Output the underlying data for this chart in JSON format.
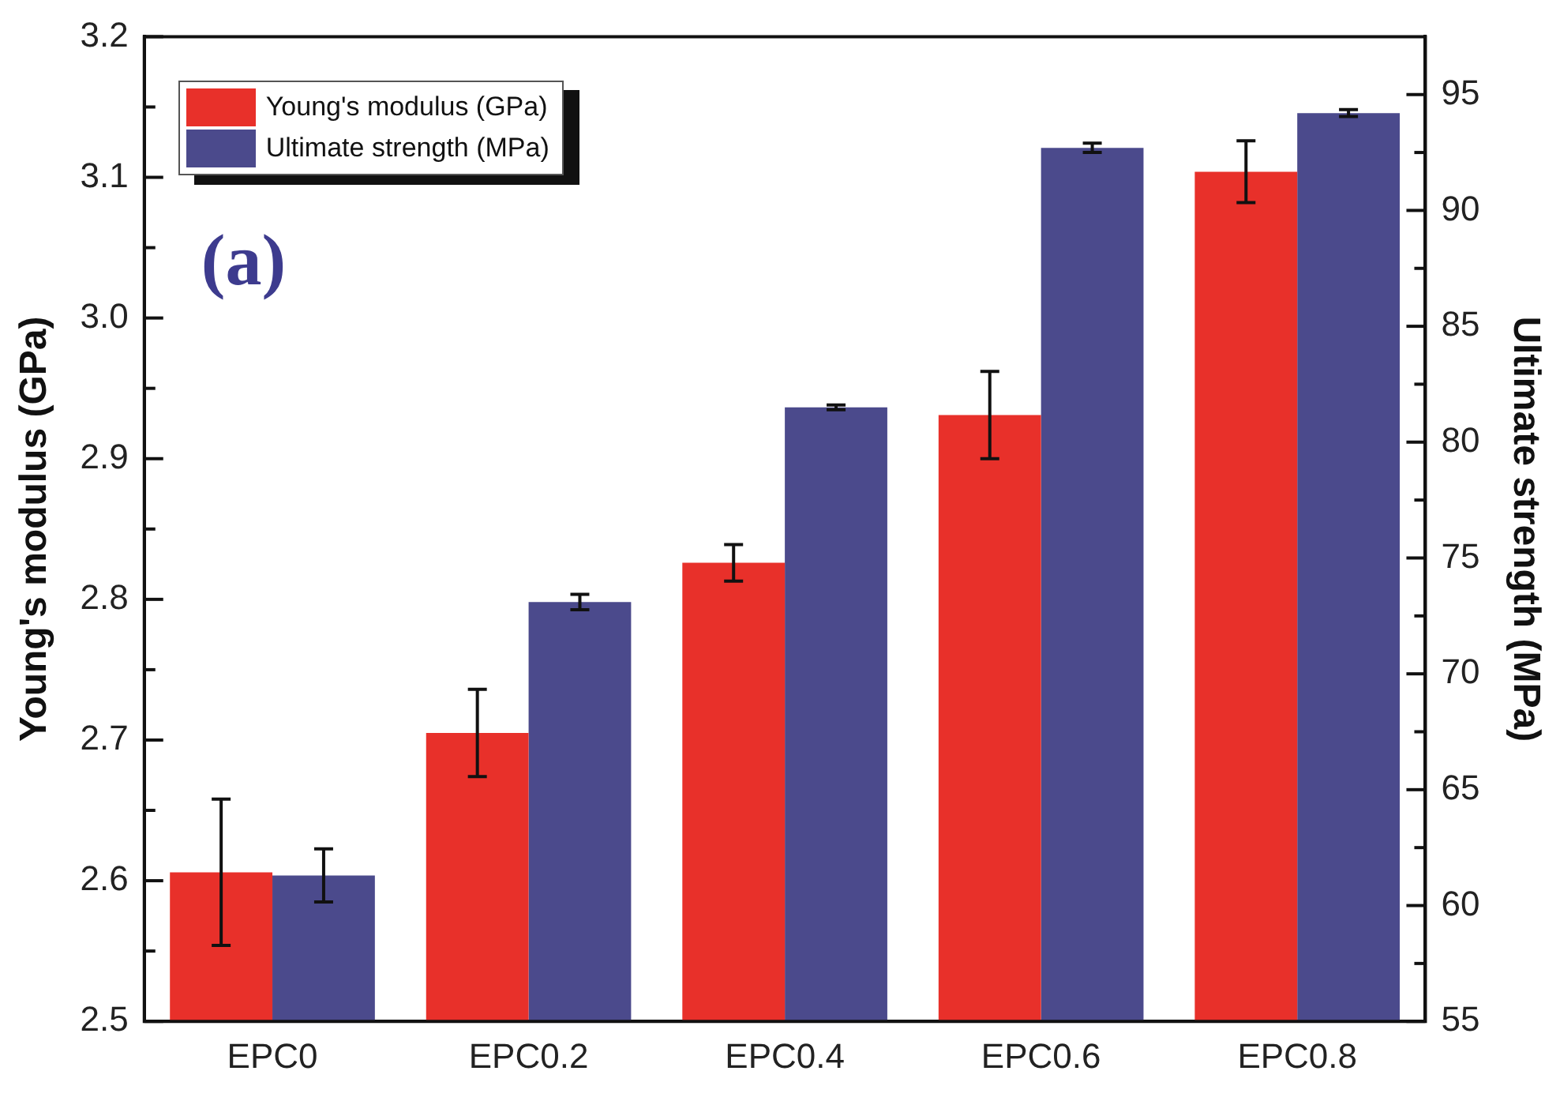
{
  "chart_data": {
    "type": "bar",
    "ylabel": "Young's modulus (GPa)",
    "y2label": "Ultimate strength (MPa)",
    "categories": [
      "EPC0",
      "EPC0.2",
      "EPC0.4",
      "EPC0.6",
      "EPC0.8"
    ],
    "series": [
      {
        "name": "Young's modulus (GPa)",
        "color": "#e8302a",
        "values": [
          2.606,
          2.705,
          2.826,
          2.931,
          3.104
        ],
        "errors": [
          0.052,
          0.031,
          0.013,
          0.031,
          0.022
        ]
      },
      {
        "name": "Ultimate strength (MPa)",
        "color": "#4b4a8c",
        "axis": "y2",
        "values": [
          61.3,
          73.1,
          81.5,
          92.7,
          94.2
        ],
        "errors": [
          1.15,
          0.33,
          0.1,
          0.2,
          0.15
        ]
      }
    ],
    "ylim": [
      2.5,
      3.2
    ],
    "yticks": [
      2.5,
      {
        "value": 2.55,
        "label": null
      },
      2.6,
      {
        "value": 2.65,
        "label": null
      },
      2.7,
      {
        "value": 2.75,
        "label": null
      },
      2.8,
      {
        "value": 2.85,
        "label": null
      },
      2.9,
      {
        "value": 2.95,
        "label": null
      },
      {
        "value": 3.0,
        "label": "3.0"
      },
      {
        "value": 3.05,
        "label": null
      },
      3.1,
      {
        "value": 3.15,
        "label": null
      },
      3.2
    ],
    "y2lim": [
      55,
      97.5
    ],
    "y2ticks": [
      55,
      {
        "value": 57.5,
        "label": null
      },
      60,
      {
        "value": 62.5,
        "label": null
      },
      65,
      {
        "value": 67.5,
        "label": null
      },
      70,
      {
        "value": 72.5,
        "label": null
      },
      75,
      {
        "value": 77.5,
        "label": null
      },
      80,
      {
        "value": 82.5,
        "label": null
      },
      85,
      {
        "value": 87.5,
        "label": null
      },
      90,
      {
        "value": 92.5,
        "label": null
      },
      95
    ],
    "annotations": [
      "(a)"
    ],
    "legend": "top left",
    "grid": false
  }
}
